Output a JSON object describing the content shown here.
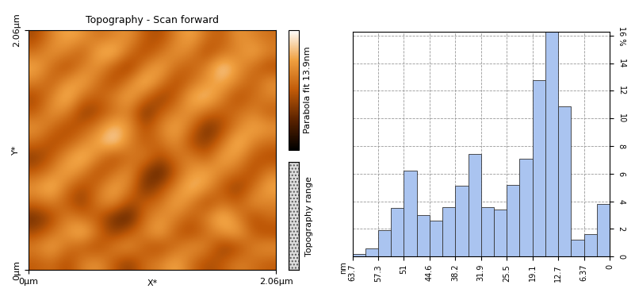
{
  "chart_data": [
    {
      "type": "heatmap",
      "title": "Topography - Scan forward",
      "xlabel": "X*",
      "ylabel": "Y*",
      "xlim": [
        0,
        2.06
      ],
      "ylim": [
        0,
        2.06
      ],
      "xticks": [
        {
          "value": 0,
          "label": "0µm"
        },
        {
          "value": 2.06,
          "label": "2.06µm"
        }
      ],
      "yticks": [
        {
          "value": 0,
          "label": "0µm"
        },
        {
          "value": 2.06,
          "label": "2.06µm"
        }
      ],
      "cells": [
        [
          7,
          8,
          6,
          9,
          10,
          7,
          5,
          8,
          9,
          11,
          8,
          6,
          7,
          9,
          8,
          7
        ],
        [
          9,
          11,
          8,
          7,
          6,
          9,
          10,
          7,
          6,
          8,
          10,
          9,
          5,
          6,
          9,
          10
        ],
        [
          6,
          8,
          10,
          12,
          8,
          5,
          7,
          9,
          11,
          7,
          6,
          8,
          10,
          11,
          7,
          6
        ],
        [
          4,
          6,
          9,
          8,
          7,
          4,
          3,
          8,
          10,
          9,
          7,
          9,
          12,
          9,
          6,
          8
        ],
        [
          8,
          9,
          7,
          5,
          9,
          10,
          6,
          7,
          8,
          11,
          9,
          6,
          8,
          7,
          10,
          9
        ],
        [
          10,
          12,
          8,
          6,
          8,
          11,
          9,
          4,
          6,
          9,
          12,
          10,
          7,
          5,
          8,
          11
        ],
        [
          7,
          9,
          11,
          9,
          6,
          8,
          10,
          5,
          3,
          7,
          10,
          11,
          9,
          8,
          6,
          9
        ],
        [
          5,
          7,
          10,
          12,
          9,
          6,
          8,
          9,
          6,
          8,
          9,
          7,
          11,
          10,
          7,
          6
        ],
        [
          8,
          6,
          7,
          9,
          11,
          13,
          9,
          7,
          8,
          10,
          6,
          5,
          8,
          12,
          9,
          8
        ],
        [
          10,
          8,
          6,
          7,
          9,
          12,
          10,
          6,
          9,
          11,
          8,
          4,
          6,
          9,
          11,
          10
        ],
        [
          7,
          10,
          9,
          5,
          6,
          8,
          9,
          4,
          7,
          9,
          10,
          8,
          7,
          8,
          9,
          7
        ],
        [
          6,
          9,
          12,
          8,
          7,
          9,
          11,
          8,
          5,
          7,
          11,
          12,
          9,
          6,
          8,
          9
        ],
        [
          9,
          7,
          10,
          11,
          8,
          6,
          9,
          12,
          9,
          6,
          8,
          10,
          11,
          9,
          7,
          10
        ],
        [
          11,
          8,
          6,
          9,
          10,
          7,
          5,
          9,
          11,
          8,
          7,
          9,
          13,
          10,
          8,
          6
        ],
        [
          8,
          10,
          9,
          7,
          11,
          12,
          8,
          6,
          8,
          10,
          9,
          6,
          8,
          9,
          11,
          9
        ],
        [
          6,
          9,
          11,
          10,
          8,
          9,
          10,
          7,
          6,
          9,
          11,
          8,
          7,
          10,
          9,
          8
        ]
      ],
      "colorbar": {
        "label": "Parabola fit 13.9nm",
        "range": [
          0,
          13.9
        ]
      },
      "annotations": [
        "Topography range"
      ]
    },
    {
      "type": "histogram",
      "xlabel": "nm",
      "color": "#aac4f0",
      "grid": true,
      "bins": [
        0,
        3.185,
        6.37,
        9.555,
        12.74,
        15.925,
        19.11,
        22.295,
        25.48,
        28.665,
        31.85,
        35.035,
        38.22,
        41.405,
        44.59,
        47.775,
        50.96,
        54.145,
        57.33,
        60.515,
        63.7
      ],
      "counts": [
        3.8,
        1.6,
        1.2,
        10.9,
        16.4,
        12.8,
        7.1,
        5.2,
        3.4,
        3.6,
        7.4,
        5.1,
        3.6,
        2.6,
        3.0,
        6.2,
        3.5,
        1.9,
        0.6,
        0.2
      ],
      "xlim": [
        63.7,
        0
      ],
      "xticks": [
        63.7,
        57.3,
        51,
        44.6,
        38.2,
        31.9,
        25.5,
        19.1,
        12.7,
        6.37,
        0
      ],
      "ylim": [
        0,
        16.3
      ],
      "yticks": [
        0,
        2,
        4,
        6,
        8,
        10,
        12,
        14,
        {
          "value": 16,
          "label": "16 %"
        }
      ]
    }
  ]
}
